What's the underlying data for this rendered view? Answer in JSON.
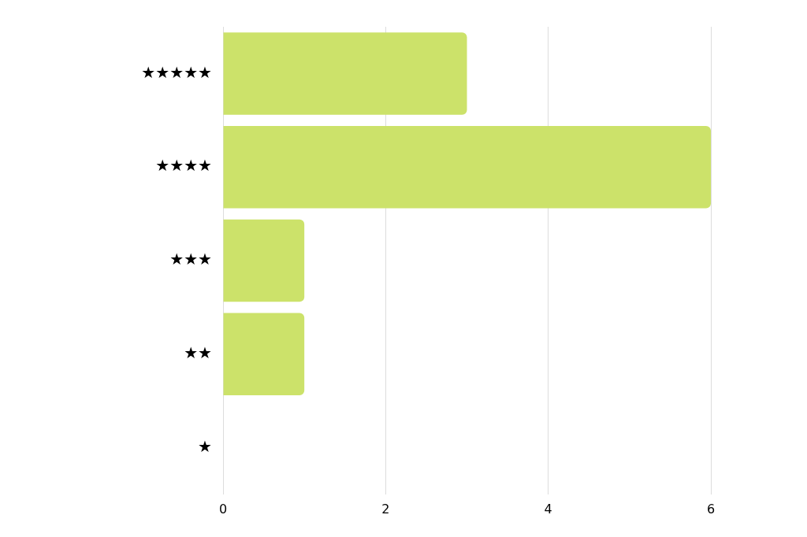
{
  "chart_data": {
    "type": "bar",
    "orientation": "horizontal",
    "categories": [
      "★★★★★",
      "★★★★",
      "★★★",
      "★★",
      "★"
    ],
    "values": [
      3,
      6,
      1,
      1,
      0
    ],
    "color": "#cce26a",
    "xlim": [
      0,
      6
    ],
    "xticks": [
      0,
      2,
      4,
      6
    ],
    "grid": "x",
    "legend": false
  }
}
